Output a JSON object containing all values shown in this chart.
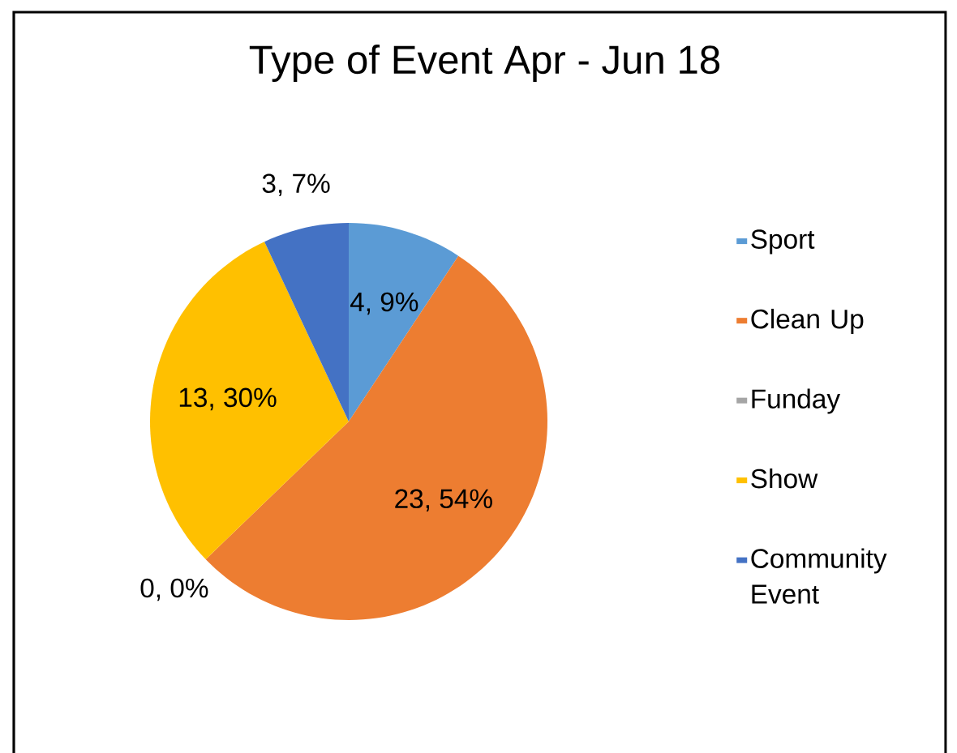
{
  "chart_data": {
    "type": "pie",
    "title": "Type of Event  Apr - Jun 18",
    "categories": [
      "Sport",
      "Clean Up",
      "Funday",
      "Show",
      "Community Event"
    ],
    "values": [
      4,
      23,
      0,
      13,
      3
    ],
    "colors": [
      "#5b9bd5",
      "#ed7d31",
      "#a5a5a5",
      "#ffc000",
      "#4472c4"
    ],
    "value_labels": [
      "4, 9%",
      "23, 54%",
      "0, 0%",
      "13, 30%",
      "3, 7%"
    ],
    "legend": "right"
  }
}
